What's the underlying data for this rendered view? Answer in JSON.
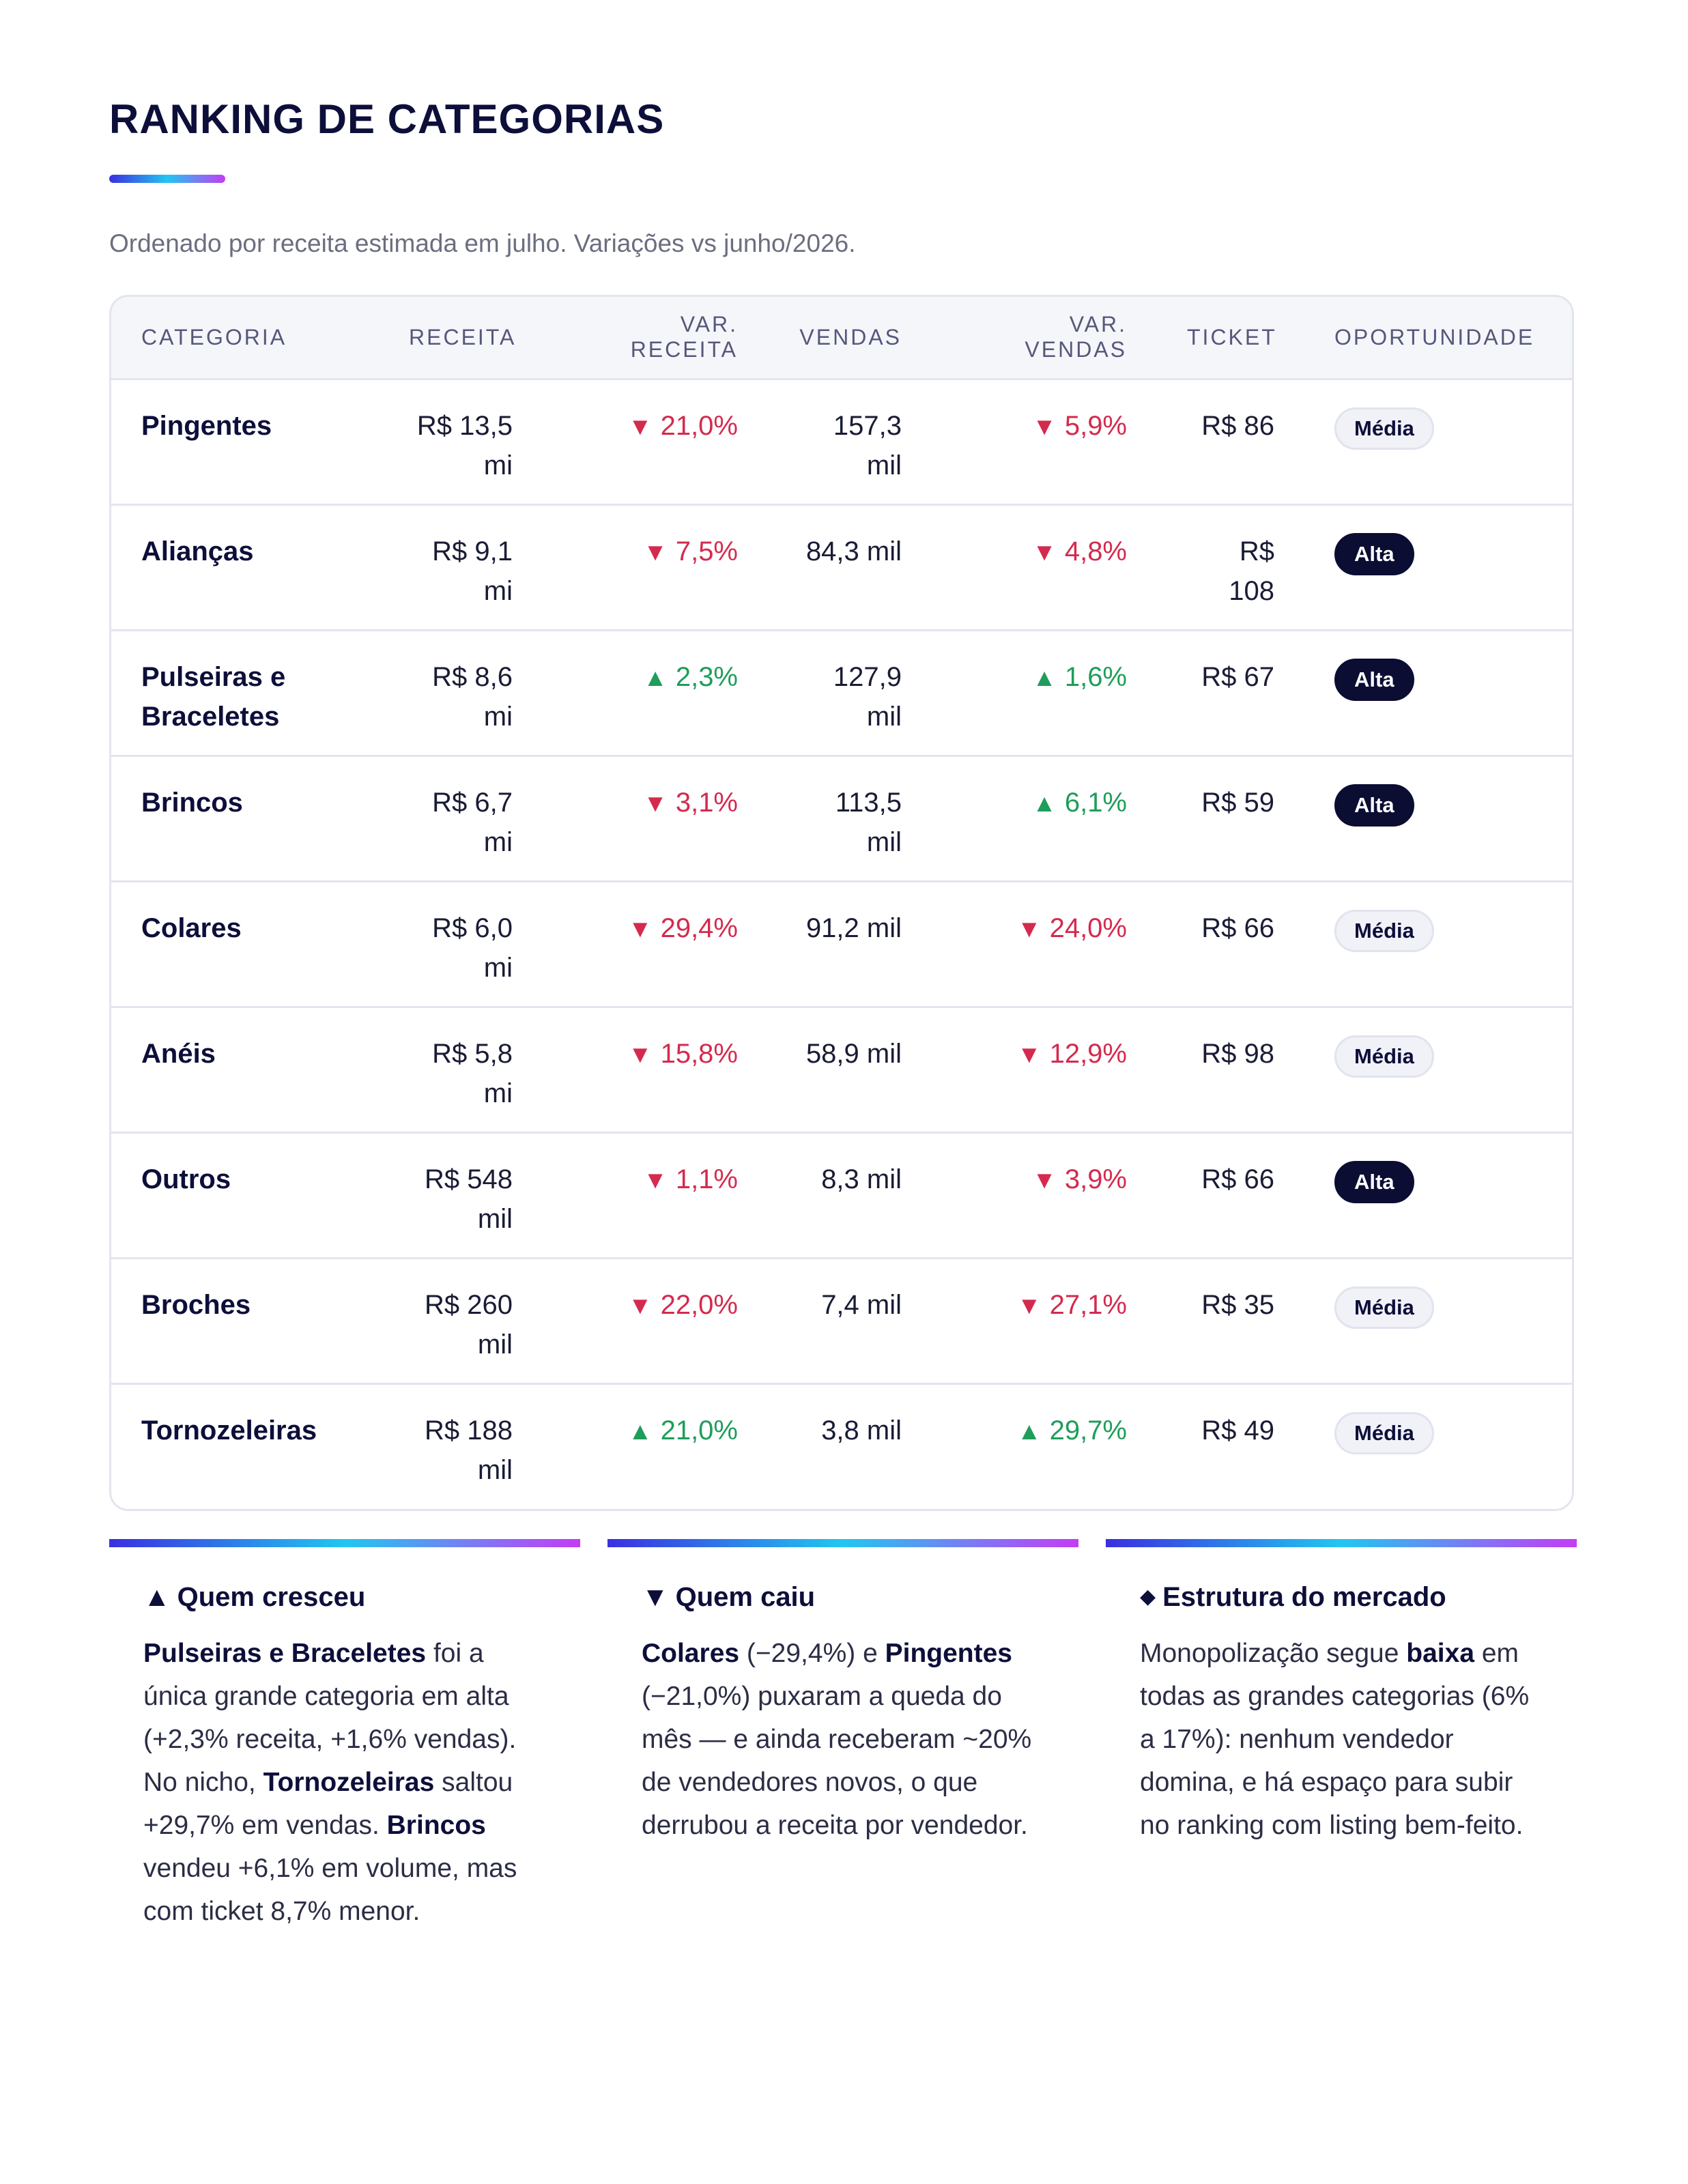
{
  "page": {
    "title": "RANKING DE CATEGORIAS",
    "subtitle": "Ordenado por receita estimada em julho. Variações vs junho/2026."
  },
  "colors": {
    "accent_gradient": [
      "#3b2fe0",
      "#22c6f0",
      "#c43cf5"
    ],
    "down": "#d42a4e",
    "up": "#1f9d5a",
    "navy": "#0d0f3a"
  },
  "table": {
    "headers": [
      "CATEGORIA",
      "RECEITA",
      "VAR. RECEITA",
      "VENDAS",
      "VAR. VENDAS",
      "TICKET",
      "OPORTUNIDADE"
    ],
    "rows": [
      {
        "categoria": "Pingentes",
        "receita": "R$ 13,5 mi",
        "var_receita": "21,0%",
        "var_receita_dir": "down",
        "vendas": "157,3 mil",
        "var_vendas": "5,9%",
        "var_vendas_dir": "down",
        "ticket": "R$ 86",
        "oportunidade": "Média"
      },
      {
        "categoria": "Alianças",
        "receita": "R$ 9,1 mi",
        "var_receita": "7,5%",
        "var_receita_dir": "down",
        "vendas": "84,3 mil",
        "var_vendas": "4,8%",
        "var_vendas_dir": "down",
        "ticket": "R$ 108",
        "oportunidade": "Alta"
      },
      {
        "categoria": "Pulseiras e Braceletes",
        "receita": "R$ 8,6 mi",
        "var_receita": "2,3%",
        "var_receita_dir": "up",
        "vendas": "127,9 mil",
        "var_vendas": "1,6%",
        "var_vendas_dir": "up",
        "ticket": "R$ 67",
        "oportunidade": "Alta"
      },
      {
        "categoria": "Brincos",
        "receita": "R$ 6,7 mi",
        "var_receita": "3,1%",
        "var_receita_dir": "down",
        "vendas": "113,5 mil",
        "var_vendas": "6,1%",
        "var_vendas_dir": "up",
        "ticket": "R$ 59",
        "oportunidade": "Alta"
      },
      {
        "categoria": "Colares",
        "receita": "R$ 6,0 mi",
        "var_receita": "29,4%",
        "var_receita_dir": "down",
        "vendas": "91,2 mil",
        "var_vendas": "24,0%",
        "var_vendas_dir": "down",
        "ticket": "R$ 66",
        "oportunidade": "Média"
      },
      {
        "categoria": "Anéis",
        "receita": "R$ 5,8 mi",
        "var_receita": "15,8%",
        "var_receita_dir": "down",
        "vendas": "58,9 mil",
        "var_vendas": "12,9%",
        "var_vendas_dir": "down",
        "ticket": "R$ 98",
        "oportunidade": "Média"
      },
      {
        "categoria": "Outros",
        "receita": "R$ 548 mil",
        "var_receita": "1,1%",
        "var_receita_dir": "down",
        "vendas": "8,3 mil",
        "var_vendas": "3,9%",
        "var_vendas_dir": "down",
        "ticket": "R$ 66",
        "oportunidade": "Alta"
      },
      {
        "categoria": "Broches",
        "receita": "R$ 260 mil",
        "var_receita": "22,0%",
        "var_receita_dir": "down",
        "vendas": "7,4 mil",
        "var_vendas": "27,1%",
        "var_vendas_dir": "down",
        "ticket": "R$ 35",
        "oportunidade": "Média"
      },
      {
        "categoria": "Tornozeleiras",
        "receita": "R$ 188 mil",
        "var_receita": "21,0%",
        "var_receita_dir": "up",
        "vendas": "3,8 mil",
        "var_vendas": "29,7%",
        "var_vendas_dir": "up",
        "ticket": "R$ 49",
        "oportunidade": "Média"
      }
    ]
  },
  "insights": {
    "crescimento": {
      "icon": "triangle-up-icon",
      "title": "Quem cresceu",
      "p1_b": "Pulseiras e Braceletes",
      "p1": " foi a única grande categoria em alta (+2,3% receita, +1,6% vendas). No nicho, ",
      "p2_b": "Tornozeleiras",
      "p2": " saltou +29,7% em vendas. ",
      "p3_b": "Brincos",
      "p3": " vendeu +6,1% em volume, mas com ticket 8,7% menor."
    },
    "queda": {
      "icon": "triangle-down-icon",
      "title": "Quem caiu",
      "p1_b": "Colares",
      "p1": " (−29,4%) e ",
      "p2_b": "Pingentes",
      "p2": " (−21,0%) puxaram a queda do mês — e ainda receberam ~20% de vendedores novos, o que derrubou a receita por vendedor."
    },
    "estrutura": {
      "icon": "diamond-icon",
      "title": "Estrutura do mercado",
      "p1": "Monopolização segue ",
      "p1_b": "baixa",
      "p2": " em todas as grandes categorias (6% a 17%): nenhum vendedor domina, e há espaço para subir no ranking com listing bem-feito."
    }
  }
}
